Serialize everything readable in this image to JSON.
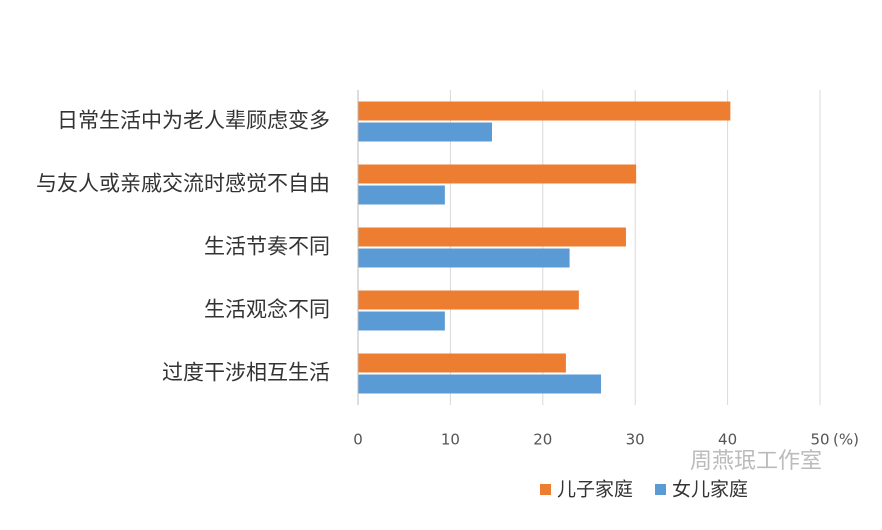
{
  "chart_data": {
    "type": "hbar",
    "categories": [
      "日常生活中为老人辈顾虑变多",
      "与友人或亲戚交流时感觉不自由",
      "生活节奏不同",
      "生活观念不同",
      "过度干涉相互生活"
    ],
    "series": [
      {
        "name": "儿子家庭",
        "color": "#ed7d31",
        "values": [
          40.3,
          30.1,
          29,
          23.9,
          22.5
        ]
      },
      {
        "name": "女儿家庭",
        "color": "#5b9bd5",
        "values": [
          14.5,
          9.4,
          22.9,
          9.4,
          26.3
        ]
      }
    ],
    "xlim": [
      0,
      50
    ],
    "xticks": [
      0,
      10,
      20,
      30,
      40,
      50
    ],
    "x_unit": "(%)",
    "grid": true,
    "watermark": "周燕珉工作室"
  }
}
